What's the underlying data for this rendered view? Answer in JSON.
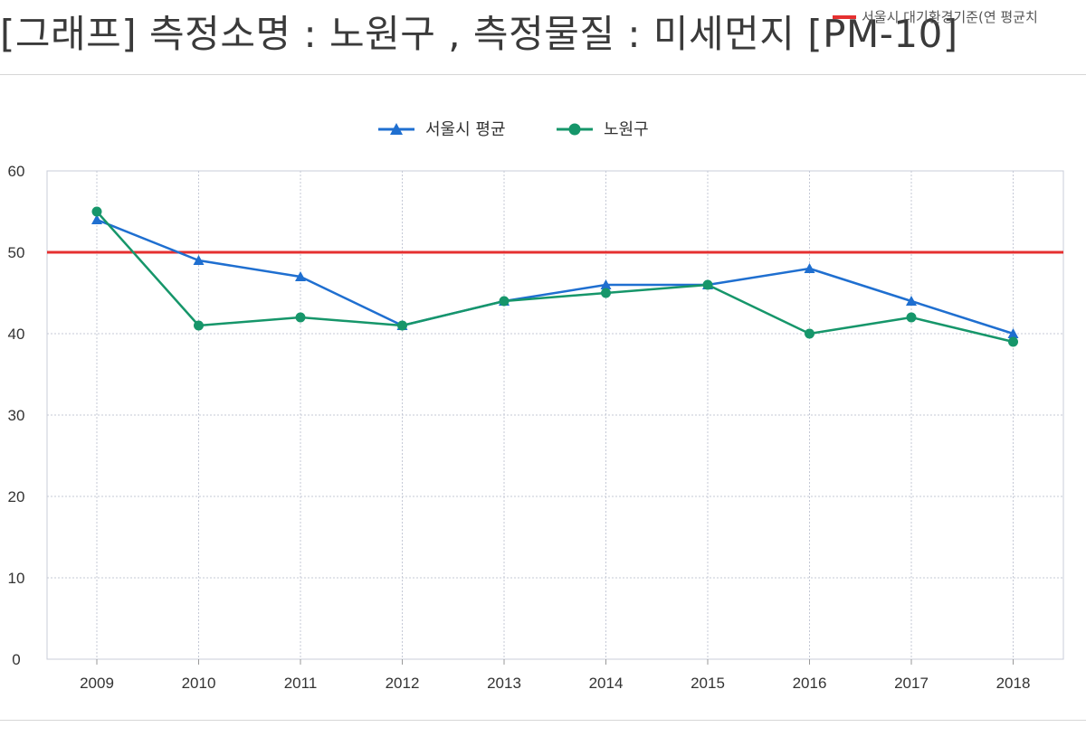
{
  "page": {
    "title": "[그래프] 측정소명 : 노원구 , 측정물질 : 미세먼지 [PM-10]",
    "standard_legend_label": "서울시 대기환경기준(연 평균치"
  },
  "chart_data": {
    "type": "line",
    "title": "",
    "xlabel": "",
    "ylabel": "",
    "categories": [
      "2009",
      "2010",
      "2011",
      "2012",
      "2013",
      "2014",
      "2015",
      "2016",
      "2017",
      "2018"
    ],
    "ylim": [
      0,
      60
    ],
    "yticks": [
      0,
      10,
      20,
      30,
      40,
      50,
      60
    ],
    "grid": true,
    "legend_position": "top-center",
    "series": [
      {
        "name": "서울시 평균",
        "values": [
          54,
          49,
          47,
          41,
          44,
          46,
          46,
          48,
          44,
          40
        ],
        "color": "#1f6fd0",
        "marker": "triangle"
      },
      {
        "name": "노원구",
        "values": [
          55,
          41,
          42,
          41,
          44,
          45,
          46,
          40,
          42,
          39
        ],
        "color": "#16966a",
        "marker": "circle"
      }
    ],
    "reference_line": {
      "value": 50,
      "color": "#e53030"
    }
  }
}
